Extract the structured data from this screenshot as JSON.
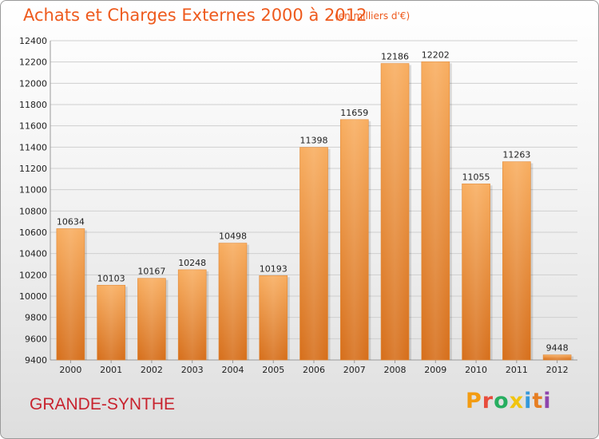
{
  "header": {
    "title": "Achats et Charges Externes 2000 à 2012",
    "subtitle": "(en milliers d'€)"
  },
  "footer": {
    "city": "GRANDE-SYNTHE",
    "logo": "Proxiti"
  },
  "colors": {
    "title": "#ee5a1d",
    "city": "#c8232e",
    "bar_light": "#f7a95a",
    "bar_dark": "#d9721c"
  },
  "chart_data": {
    "type": "bar",
    "categories": [
      "2000",
      "2001",
      "2002",
      "2003",
      "2004",
      "2005",
      "2006",
      "2007",
      "2008",
      "2009",
      "2010",
      "2011",
      "2012"
    ],
    "values": [
      10634,
      10103,
      10167,
      10248,
      10498,
      10193,
      11398,
      11659,
      12186,
      12202,
      11055,
      11263,
      9448
    ],
    "ylim": [
      9400,
      12400
    ],
    "yticks": [
      9400,
      9600,
      9800,
      10000,
      10200,
      10400,
      10600,
      10800,
      11000,
      11200,
      11400,
      11600,
      11800,
      12000,
      12200,
      12400
    ],
    "grid": true,
    "legend": "none"
  }
}
